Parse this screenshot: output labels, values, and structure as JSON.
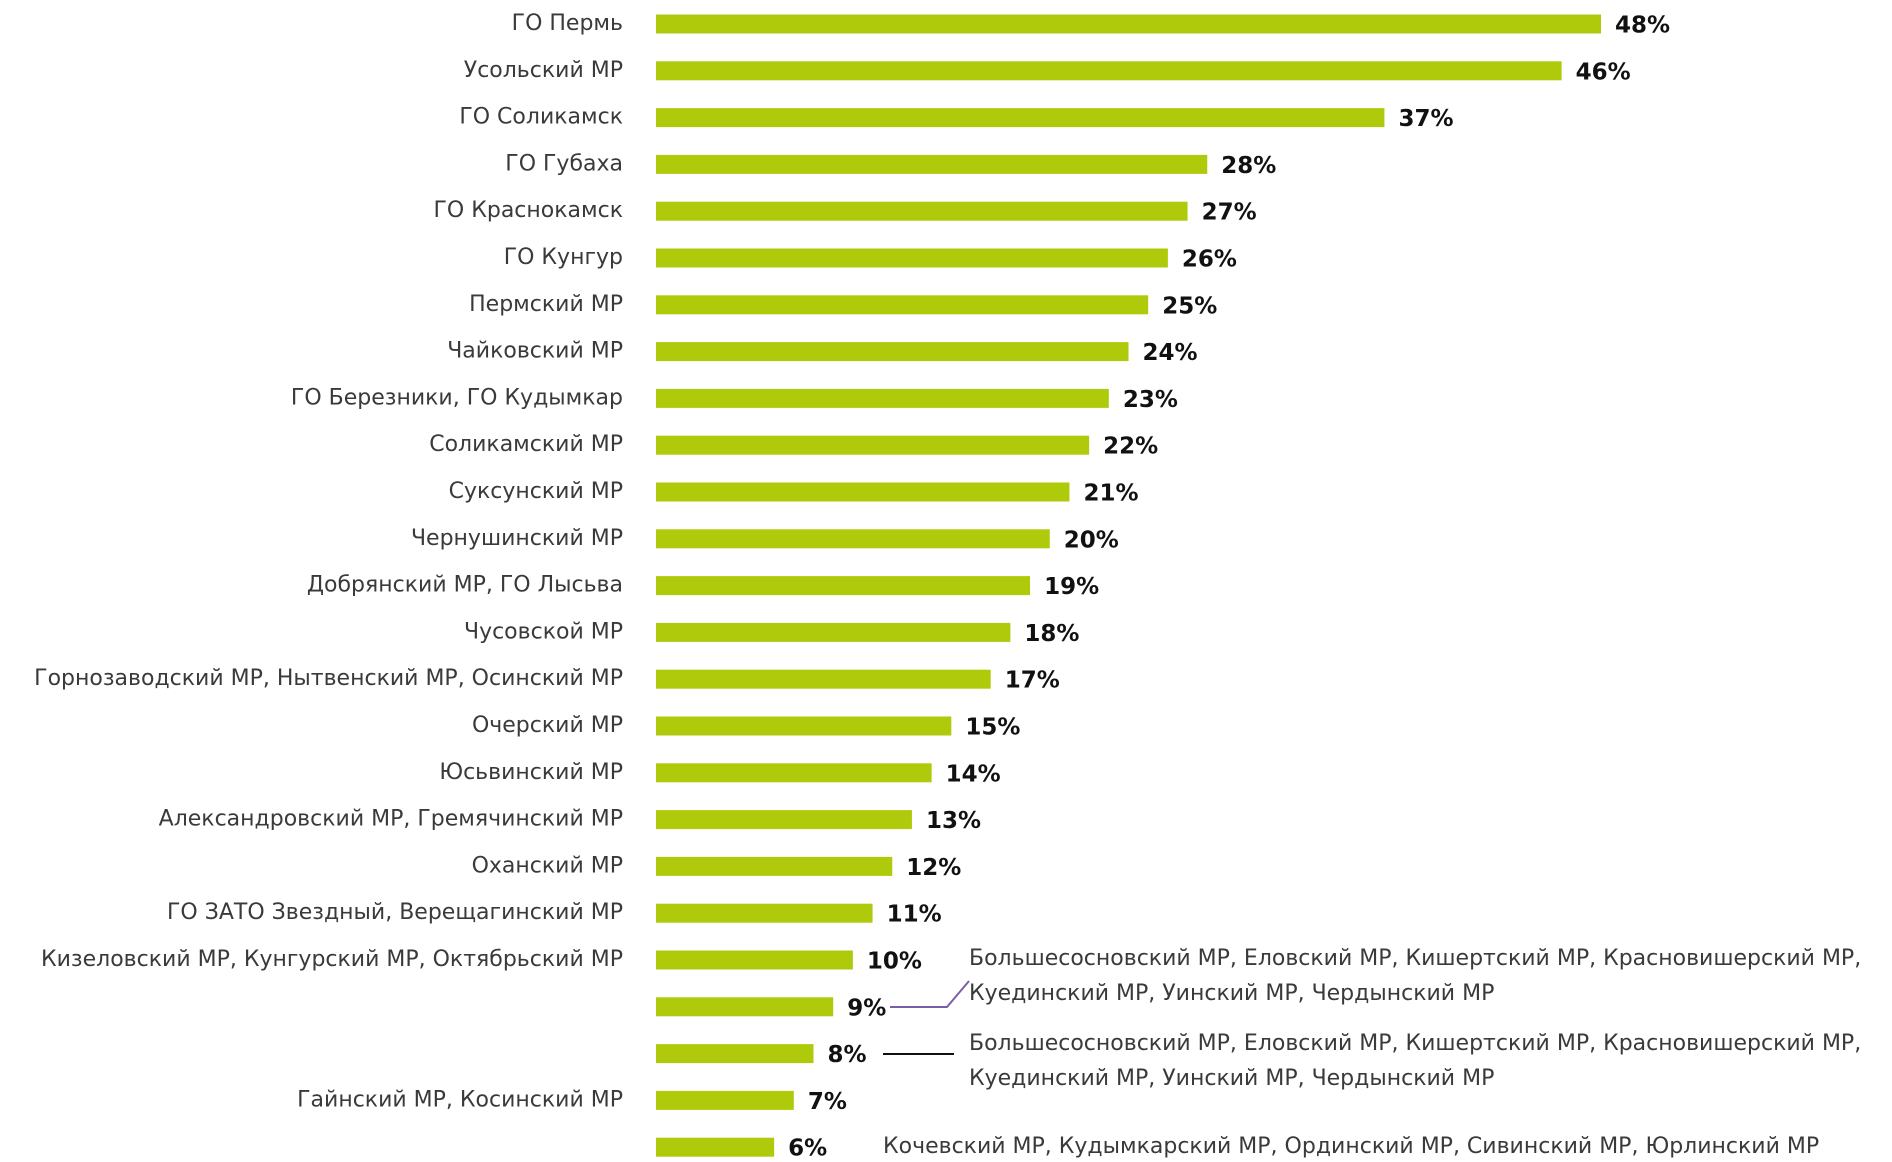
{
  "chart_data": {
    "type": "barh",
    "categories": [
      "ГО Пермь",
      "Усольский МР",
      "ГО Соликамск",
      "ГО Губаха",
      "ГО Краснокамск",
      "ГО Кунгур",
      "Пермский МР",
      "Чайковский МР",
      "ГО Березники, ГО Кудымкар",
      "Соликамский МР",
      "Суксунский МР",
      "Чернушинский МР",
      "Добрянский МР, ГО Лысьва",
      "Чусовской МР",
      "Горнозаводский МР, Нытвенский МР, Осинский МР",
      "Очерский МР",
      "Юсьвинский МР",
      "Александровский МР, Гремячинский МР",
      "Оханский МР",
      "ГО ЗАТО Звездный, Верещагинский МР",
      "Кизеловский МР, Кунгурский МР, Октябрьский МР",
      null,
      null,
      "Гайнский МР, Косинский МР",
      null
    ],
    "values": [
      48,
      46,
      37,
      28,
      27,
      26,
      25,
      24,
      23,
      22,
      21,
      20,
      19,
      18,
      17,
      15,
      14,
      13,
      12,
      11,
      10,
      9,
      8,
      7,
      6
    ],
    "value_labels": [
      "48%",
      "46%",
      "37%",
      "28%",
      "27%",
      "26%",
      "25%",
      "24%",
      "23%",
      "22%",
      "21%",
      "20%",
      "19%",
      "18%",
      "17%",
      "15%",
      "14%",
      "13%",
      "12%",
      "11%",
      "10%",
      "9%",
      "8%",
      "7%",
      "6%"
    ],
    "color": "#afca0b",
    "annotations": [
      [
        "Большесосновский МР, Еловский МР, Кишертский МР, Красновишерский МР,",
        "Куединский МР, Уинский МР, Чердынский МР"
      ],
      [
        "Большесосновский МР, Еловский МР, Кишертский МР, Красновишерский МР,",
        "Куединский МР, Уинский МР, Чердынский МР"
      ],
      [
        "Кочевский МР, Кудымкарский МР, Ординский МР, Сивинский МР, Юрлинский МР"
      ]
    ]
  }
}
